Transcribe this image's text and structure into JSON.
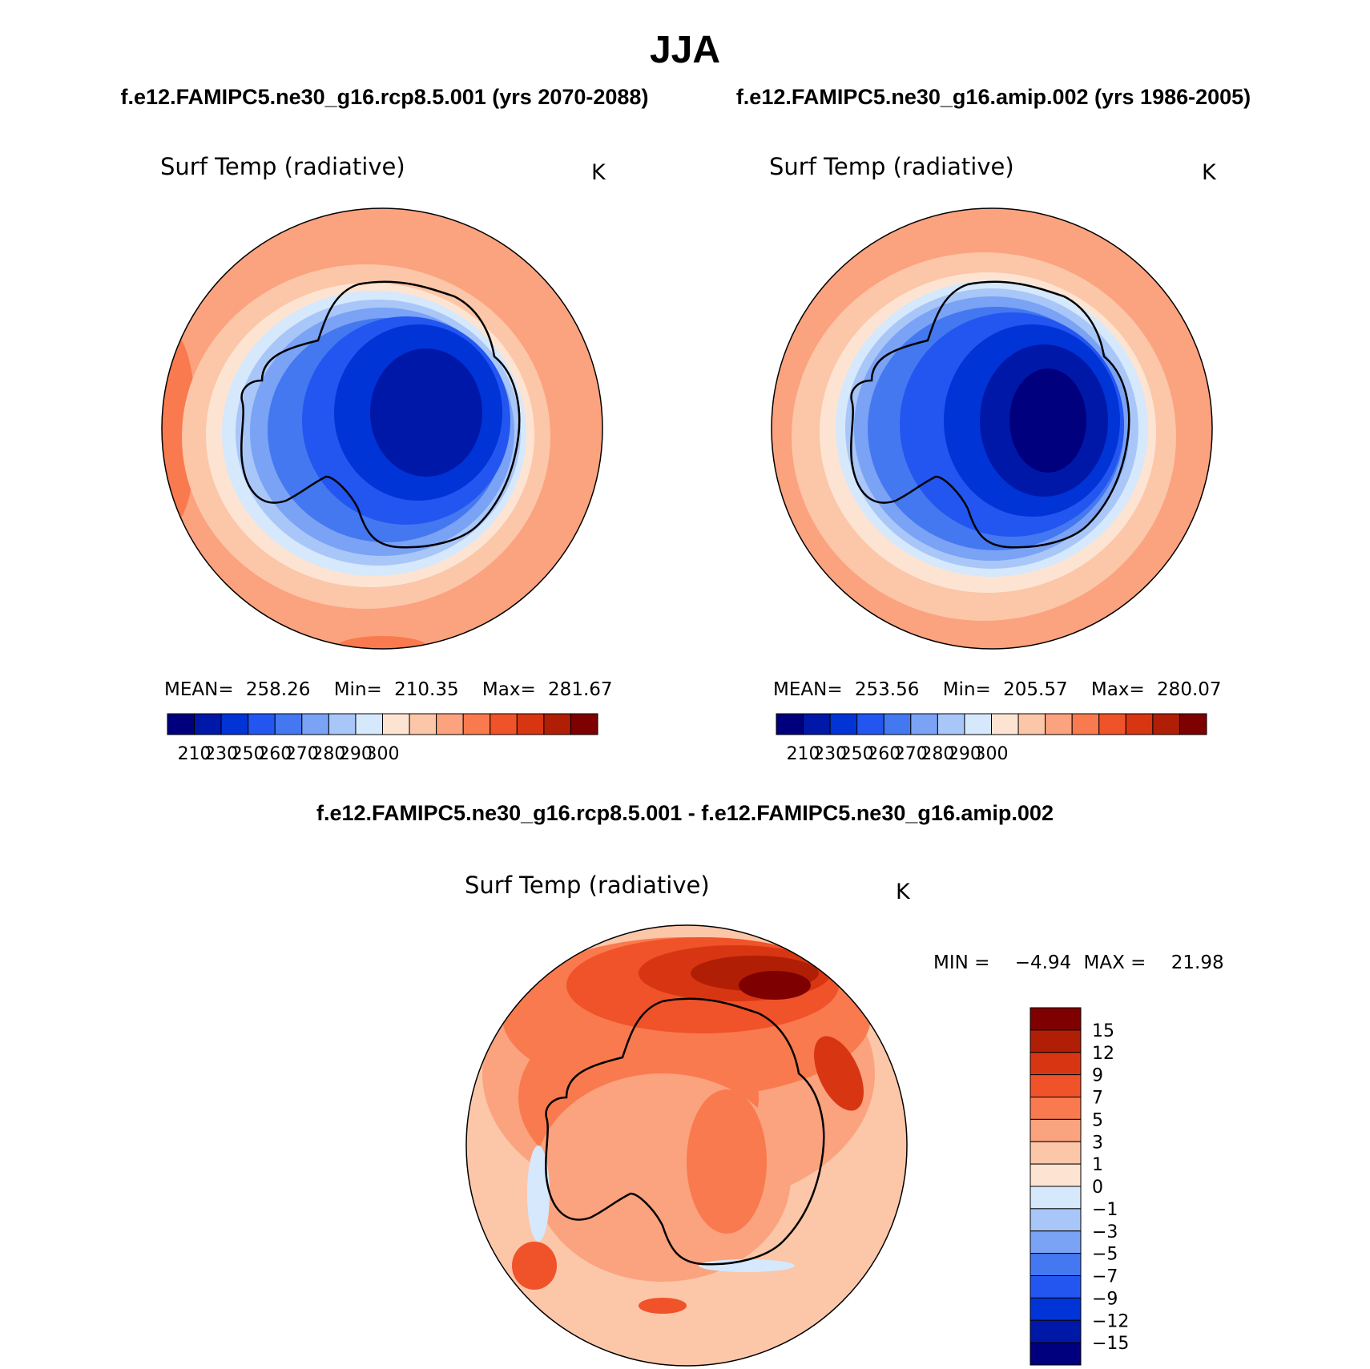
{
  "figure": {
    "season": "JJA",
    "case_a_header": "f.e12.FAMIPC5.ne30_g16.rcp8.5.001 (yrs 2070-2088)",
    "case_b_header": "f.e12.FAMIPC5.ne30_g16.amip.002 (yrs 1986-2005)",
    "diff_header": "f.e12.FAMIPC5.ne30_g16.rcp8.5.001 - f.e12.FAMIPC5.ne30_g16.amip.002"
  },
  "panels": [
    {
      "variable": "Surf Temp (radiative)",
      "units": "K",
      "stats": {
        "mean_label": "MEAN=",
        "mean": "258.26",
        "min_label": "Min=",
        "min": "210.35",
        "max_label": "Max=",
        "max": "281.67"
      }
    },
    {
      "variable": "Surf Temp (radiative)",
      "units": "K",
      "stats": {
        "mean_label": "MEAN=",
        "mean": "253.56",
        "min_label": "Min=",
        "min": "205.57",
        "max_label": "Max=",
        "max": "280.07"
      }
    },
    {
      "variable": "Surf Temp (radiative)",
      "units": "K",
      "stats": {
        "min_label": "MIN =",
        "min": "−4.94",
        "max_label": "MAX =",
        "max": "21.98"
      }
    }
  ],
  "colorbar_abs": {
    "labels": [
      "210",
      "230",
      "250",
      "260",
      "270",
      "280",
      "290",
      "300"
    ],
    "colors": [
      "#00007e",
      "#0018a8",
      "#0034d6",
      "#2356f0",
      "#4478f0",
      "#7aa2f5",
      "#a9c6f8",
      "#d6e8fb",
      "#fde4d2",
      "#fcc6a8",
      "#fba27e",
      "#f97a4e",
      "#f0522a",
      "#d83612",
      "#b01e06",
      "#7e0000"
    ]
  },
  "colorbar_diff": {
    "labels": [
      "15",
      "12",
      "9",
      "7",
      "5",
      "3",
      "1",
      "0",
      "−1",
      "−3",
      "−5",
      "−7",
      "−9",
      "−12",
      "−15"
    ],
    "colors": [
      "#7e0000",
      "#b01e06",
      "#d83612",
      "#f0522a",
      "#f97a4e",
      "#fba27e",
      "#fcc6a8",
      "#fde4d2",
      "#d6e8fb",
      "#a9c6f8",
      "#7aa2f5",
      "#4478f0",
      "#2356f0",
      "#0034d6",
      "#0018a8",
      "#00007e"
    ]
  }
}
